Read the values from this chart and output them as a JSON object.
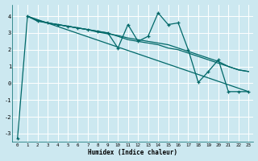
{
  "xlabel": "Humidex (Indice chaleur)",
  "bg_color": "#cce8f0",
  "grid_color": "#ffffff",
  "line_color": "#006868",
  "xlim": [
    -0.5,
    23.5
  ],
  "ylim": [
    -3.5,
    4.7
  ],
  "yticks": [
    -3,
    -2,
    -1,
    0,
    1,
    2,
    3,
    4
  ],
  "xticks": [
    0,
    1,
    2,
    3,
    4,
    5,
    6,
    7,
    8,
    9,
    10,
    11,
    12,
    13,
    14,
    15,
    16,
    17,
    18,
    19,
    20,
    21,
    22,
    23
  ],
  "series1_x": [
    0,
    1,
    2,
    3,
    4,
    5,
    6,
    7,
    8,
    9,
    10,
    11,
    12,
    13,
    14,
    15,
    16,
    17,
    18,
    19,
    20,
    21,
    22,
    23
  ],
  "series1_y": [
    -3.3,
    4.0,
    3.7,
    3.6,
    3.5,
    3.4,
    3.3,
    3.2,
    3.1,
    3.0,
    2.1,
    3.5,
    2.5,
    2.8,
    4.2,
    3.5,
    3.6,
    2.0,
    0.05,
    0.7,
    1.4,
    -0.5,
    -0.5,
    -0.5
  ],
  "series2_x": [
    1,
    2,
    3,
    4,
    5,
    6,
    7,
    8,
    9,
    10,
    11,
    12,
    13,
    14,
    15,
    16,
    17,
    18,
    19,
    20,
    21,
    22,
    23
  ],
  "series2_y": [
    4.0,
    3.75,
    3.6,
    3.5,
    3.4,
    3.3,
    3.2,
    3.1,
    3.0,
    2.8,
    2.6,
    2.5,
    2.4,
    2.3,
    2.1,
    2.0,
    1.8,
    1.6,
    1.4,
    1.2,
    1.0,
    0.8,
    0.7
  ],
  "series3_x": [
    1,
    2,
    3,
    4,
    5,
    6,
    7,
    8,
    9,
    10,
    11,
    12,
    13,
    14,
    15,
    16,
    17,
    18,
    19,
    20,
    21,
    22,
    23
  ],
  "series3_y": [
    4.0,
    3.75,
    3.6,
    3.5,
    3.4,
    3.3,
    3.2,
    3.05,
    2.95,
    2.85,
    2.7,
    2.6,
    2.5,
    2.4,
    2.3,
    2.1,
    1.9,
    1.7,
    1.5,
    1.3,
    1.0,
    0.8,
    0.7
  ],
  "trend_x": [
    1,
    23
  ],
  "trend_y": [
    4.0,
    -0.5
  ]
}
